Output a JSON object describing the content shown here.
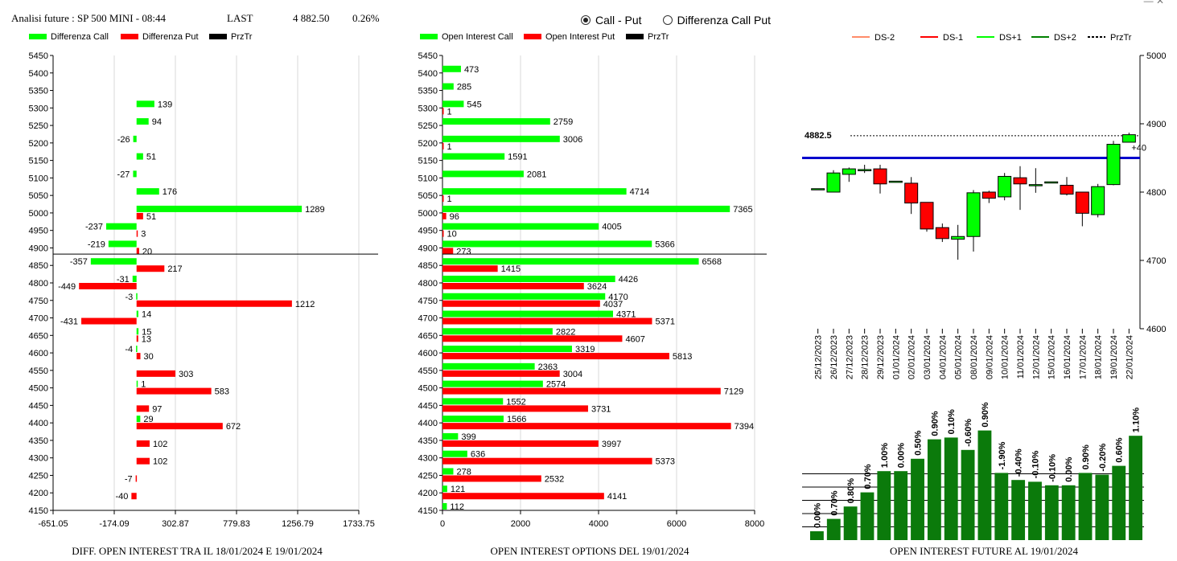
{
  "header": {
    "title": "Analisi future : SP 500 MINI - 08:44",
    "last_label": "LAST",
    "last_value": "4 882.50",
    "change": "0.26%"
  },
  "view_options": [
    {
      "label": "Call - Put",
      "selected": true
    },
    {
      "label": "Differenza Call Put",
      "selected": false
    }
  ],
  "footers": {
    "diff": "DIFF. OPEN INTEREST TRA IL 18/01/2024 E 19/01/2024",
    "oi": "OPEN INTEREST OPTIONS DEL 19/01/2024",
    "future": "OPEN INTEREST FUTURE AL 19/01/2024"
  },
  "chart_data": [
    {
      "type": "bar",
      "orientation": "horizontal",
      "legend": [
        {
          "name": "Differenza Call",
          "color": "#00ff00"
        },
        {
          "name": "Differenza Put",
          "color": "#ff0000"
        },
        {
          "name": "PrzTr",
          "color": "#000000"
        }
      ],
      "categories": [
        5450,
        5400,
        5350,
        5300,
        5250,
        5200,
        5150,
        5100,
        5050,
        5000,
        4950,
        4900,
        4850,
        4800,
        4750,
        4700,
        4650,
        4600,
        4550,
        4500,
        4450,
        4400,
        4350,
        4300,
        4250,
        4200,
        4150
      ],
      "series": [
        {
          "name": "Differenza Call",
          "color": "#00ff00",
          "values": [
            null,
            null,
            null,
            139,
            94,
            -26,
            51,
            -27,
            176,
            1289,
            -237,
            -219,
            -357,
            -31,
            -3,
            14,
            15,
            -4,
            null,
            1,
            null,
            29,
            null,
            null,
            null,
            null,
            null
          ]
        },
        {
          "name": "Differenza Put",
          "color": "#ff0000",
          "values": [
            null,
            null,
            null,
            null,
            null,
            null,
            null,
            null,
            null,
            51,
            3,
            20,
            217,
            -449,
            1212,
            -431,
            13,
            30,
            303,
            583,
            97,
            672,
            102,
            102,
            -7,
            -40,
            null
          ]
        }
      ],
      "price_line": 4882.5,
      "xticks": [
        "-651.05",
        "-174.09",
        "302.87",
        "779.83",
        "1256.79",
        "1733.75"
      ],
      "xlim": [
        -651.05,
        1733.75
      ]
    },
    {
      "type": "bar",
      "orientation": "horizontal",
      "legend": [
        {
          "name": "Open Interest Call",
          "color": "#00ff00"
        },
        {
          "name": "Open Interest Put",
          "color": "#ff0000"
        },
        {
          "name": "PrzTr",
          "color": "#000000"
        }
      ],
      "categories": [
        5450,
        5400,
        5350,
        5300,
        5250,
        5200,
        5150,
        5100,
        5050,
        5000,
        4950,
        4900,
        4850,
        4800,
        4750,
        4700,
        4650,
        4600,
        4550,
        4500,
        4450,
        4400,
        4350,
        4300,
        4250,
        4200,
        4150
      ],
      "series": [
        {
          "name": "Open Interest Call",
          "color": "#00ff00",
          "values": [
            null,
            473,
            285,
            545,
            2759,
            3006,
            1591,
            2081,
            4714,
            7365,
            4005,
            5366,
            6568,
            4426,
            4170,
            4371,
            2822,
            3319,
            2363,
            2574,
            1552,
            1566,
            399,
            636,
            278,
            121,
            112
          ]
        },
        {
          "name": "Open Interest Put",
          "color": "#ff0000",
          "values": [
            null,
            null,
            null,
            1,
            null,
            1,
            null,
            null,
            1,
            96,
            10,
            273,
            1415,
            3624,
            4037,
            5371,
            4607,
            5813,
            3004,
            7129,
            3731,
            7394,
            3997,
            5373,
            2532,
            4141,
            null
          ]
        }
      ],
      "price_line": 4882.5,
      "xticks": [
        "0",
        "2000",
        "4000",
        "6000",
        "8000"
      ],
      "xlim": [
        0,
        8000
      ]
    },
    {
      "type": "candlestick",
      "legend": [
        {
          "name": "DS-2",
          "color": "#ff8c69",
          "style": "solid"
        },
        {
          "name": "DS-1",
          "color": "#ff0000",
          "style": "solid"
        },
        {
          "name": "DS+1",
          "color": "#00ff00",
          "style": "solid"
        },
        {
          "name": "DS+2",
          "color": "#008000",
          "style": "solid"
        },
        {
          "name": "PrzTr",
          "color": "#000000",
          "style": "dashed"
        }
      ],
      "dates": [
        "25/12/2023",
        "26/12/2023",
        "27/12/2023",
        "28/12/2023",
        "29/12/2023",
        "01/01/2024",
        "02/01/2024",
        "03/01/2024",
        "04/01/2024",
        "05/01/2024",
        "08/01/2024",
        "09/01/2024",
        "10/01/2024",
        "11/01/2024",
        "12/01/2024",
        "15/01/2024",
        "16/01/2024",
        "17/01/2024",
        "18/01/2024",
        "19/01/2024",
        "22/01/2024"
      ],
      "candles": [
        {
          "o": 4805,
          "h": 4805,
          "l": 4805,
          "c": 4805
        },
        {
          "o": 4800,
          "h": 4832,
          "l": 4800,
          "c": 4828
        },
        {
          "o": 4826,
          "h": 4836,
          "l": 4815,
          "c": 4834
        },
        {
          "o": 4833,
          "h": 4840,
          "l": 4828,
          "c": 4833
        },
        {
          "o": 4834,
          "h": 4840,
          "l": 4798,
          "c": 4812
        },
        {
          "o": 4816,
          "h": 4816,
          "l": 4816,
          "c": 4816
        },
        {
          "o": 4813,
          "h": 4822,
          "l": 4768,
          "c": 4784
        },
        {
          "o": 4785,
          "h": 4785,
          "l": 4742,
          "c": 4746
        },
        {
          "o": 4748,
          "h": 4754,
          "l": 4727,
          "c": 4732
        },
        {
          "o": 4731,
          "h": 4752,
          "l": 4701,
          "c": 4735
        },
        {
          "o": 4735,
          "h": 4803,
          "l": 4713,
          "c": 4799
        },
        {
          "o": 4800,
          "h": 4802,
          "l": 4784,
          "c": 4791
        },
        {
          "o": 4793,
          "h": 4828,
          "l": 4788,
          "c": 4823
        },
        {
          "o": 4821,
          "h": 4838,
          "l": 4774,
          "c": 4812
        },
        {
          "o": 4811,
          "h": 4835,
          "l": 4799,
          "c": 4811
        },
        {
          "o": 4815,
          "h": 4815,
          "l": 4815,
          "c": 4815
        },
        {
          "o": 4810,
          "h": 4822,
          "l": 4795,
          "c": 4797
        },
        {
          "o": 4800,
          "h": 4800,
          "l": 4750,
          "c": 4769
        },
        {
          "o": 4767,
          "h": 4812,
          "l": 4763,
          "c": 4808
        },
        {
          "o": 4811,
          "h": 4875,
          "l": 4810,
          "c": 4870
        },
        {
          "o": 4873,
          "h": 4887,
          "l": 4873,
          "c": 4884
        }
      ],
      "price_label": "4882.5",
      "price_line": 4882.5,
      "level_line": 4850,
      "delta_label": "+40",
      "yticks": [
        4600,
        4700,
        4800,
        4900,
        5000
      ],
      "ylim": [
        4600,
        5000
      ]
    },
    {
      "type": "bar",
      "series": [
        {
          "name": "Open Interest Future",
          "color": "#0b7a0b",
          "values": [
            0.05,
            0.12,
            0.19,
            0.27,
            0.39,
            0.39,
            0.46,
            0.57,
            0.58,
            0.51,
            0.62,
            0.38,
            0.34,
            0.33,
            0.31,
            0.31,
            0.38,
            0.37,
            0.42,
            0.59
          ]
        }
      ],
      "labels": [
        "0.00%",
        "0.70%",
        "0.80%",
        "0.70%",
        "1.00%",
        "0.00%",
        "0.50%",
        "0.90%",
        "0.10%",
        "-0.60%",
        "0.90%",
        "-1.90%",
        "-0.40%",
        "-0.10%",
        "-0.10%",
        "0.00%",
        "0.90%",
        "-0.20%",
        "0.60%",
        "1.10%"
      ]
    }
  ]
}
